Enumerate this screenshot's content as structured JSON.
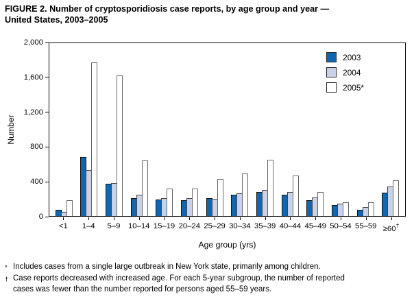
{
  "title_lines": [
    "FIGURE 2. Number of cryptosporidiosis case reports, by age group and year —",
    "United States, 2003–2005"
  ],
  "chart_data": {
    "type": "bar",
    "title": "FIGURE 2. Number of cryptosporidiosis case reports, by age group and year — United States, 2003–2005",
    "xlabel": "Age group (yrs)",
    "ylabel": "Number",
    "ylim": [
      0,
      2000
    ],
    "grid": false,
    "legend_position": "top-right-inside",
    "y_ticks": [
      {
        "label": "0",
        "value": 0
      },
      {
        "label": "400",
        "value": 400
      },
      {
        "label": "800",
        "value": 800
      },
      {
        "label": "1,200",
        "value": 1200
      },
      {
        "label": "1,600",
        "value": 1600
      },
      {
        "label": "2,000",
        "value": 2000
      }
    ],
    "categories": [
      "<1",
      "1–4",
      "5–9",
      "10–14",
      "15–19",
      "20–24",
      "25–29",
      "30–34",
      "35–39",
      "40–44",
      "45–49",
      "50–54",
      "55–59",
      "≥60†"
    ],
    "series": [
      {
        "name": "2003",
        "fill": "#1066af",
        "border": "#111111",
        "values": [
          70,
          680,
          370,
          210,
          190,
          185,
          205,
          250,
          280,
          250,
          185,
          125,
          75,
          270
        ]
      },
      {
        "name": "2004",
        "fill": "#c9d2e9",
        "border": "#444444",
        "values": [
          50,
          535,
          385,
          250,
          205,
          210,
          200,
          260,
          300,
          275,
          215,
          145,
          105,
          340
        ]
      },
      {
        "name": "2005*",
        "fill": "#ffffff",
        "border": "#666666",
        "values": [
          180,
          1780,
          1630,
          640,
          315,
          320,
          430,
          490,
          650,
          470,
          280,
          160,
          155,
          415
        ]
      }
    ]
  },
  "footnotes": [
    {
      "marker": "*",
      "lines": [
        "Includes cases from a single large outbreak in New York state, primarily among children."
      ]
    },
    {
      "marker": "†",
      "lines": [
        "Case reports decreased with increased age. For each 5-year subgroup, the number of reported",
        "cases was fewer than the number reported for persons aged 55–59 years."
      ]
    }
  ]
}
